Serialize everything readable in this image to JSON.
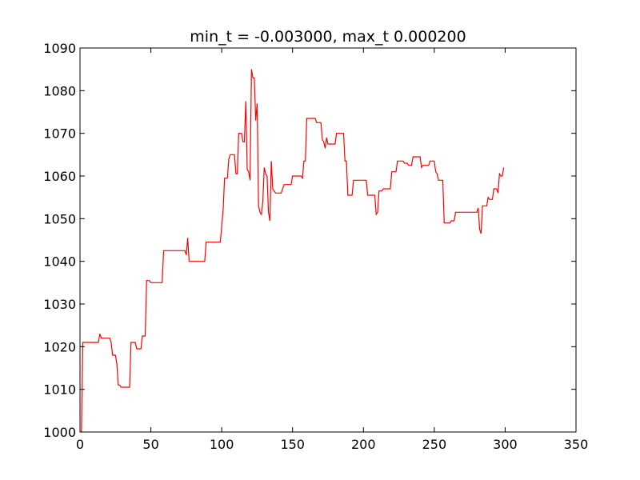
{
  "chart_data": {
    "type": "line",
    "title": "min_t = -0.003000, max_t 0.000200",
    "xlabel": "",
    "ylabel": "",
    "xlim": [
      0,
      350
    ],
    "ylim": [
      1000,
      1090
    ],
    "x_ticks": [
      0,
      50,
      100,
      150,
      200,
      250,
      300,
      350
    ],
    "y_ticks": [
      1000,
      1010,
      1020,
      1030,
      1040,
      1050,
      1060,
      1070,
      1080,
      1090
    ],
    "grid": false,
    "legend": "none",
    "series": [
      {
        "color": "#ff0000",
        "points": [
          [
            0,
            1000
          ],
          [
            1,
            1000
          ],
          [
            2,
            1021
          ],
          [
            13,
            1021
          ],
          [
            14,
            1023
          ],
          [
            15,
            1022
          ],
          [
            21,
            1022
          ],
          [
            22,
            1021
          ],
          [
            23,
            1018
          ],
          [
            25,
            1018
          ],
          [
            26,
            1016
          ],
          [
            27,
            1011
          ],
          [
            28,
            1011
          ],
          [
            29,
            1010.5
          ],
          [
            35,
            1010.5
          ],
          [
            36,
            1021
          ],
          [
            39,
            1021
          ],
          [
            40,
            1019.5
          ],
          [
            43,
            1019.5
          ],
          [
            44,
            1022.5
          ],
          [
            46,
            1022.5
          ],
          [
            47,
            1035.5
          ],
          [
            49,
            1035.5
          ],
          [
            50,
            1035
          ],
          [
            58,
            1035
          ],
          [
            59,
            1042.5
          ],
          [
            74,
            1042.5
          ],
          [
            75,
            1041.5
          ],
          [
            76,
            1045.5
          ],
          [
            77,
            1040
          ],
          [
            88,
            1040
          ],
          [
            89,
            1044.5
          ],
          [
            99,
            1044.5
          ],
          [
            101,
            1052
          ],
          [
            102,
            1059.5
          ],
          [
            104,
            1059.5
          ],
          [
            105,
            1064
          ],
          [
            106,
            1065
          ],
          [
            109,
            1065
          ],
          [
            110,
            1060.5
          ],
          [
            111,
            1060.5
          ],
          [
            112,
            1070
          ],
          [
            114,
            1070
          ],
          [
            115,
            1068
          ],
          [
            116,
            1068
          ],
          [
            117,
            1077.5
          ],
          [
            118,
            1061.5
          ],
          [
            119,
            1061
          ],
          [
            120,
            1059
          ],
          [
            121,
            1085
          ],
          [
            122,
            1083
          ],
          [
            123,
            1083
          ],
          [
            124,
            1073
          ],
          [
            125,
            1077
          ],
          [
            126,
            1053
          ],
          [
            127,
            1051.5
          ],
          [
            128,
            1051
          ],
          [
            129,
            1054
          ],
          [
            130,
            1062
          ],
          [
            131,
            1060.5
          ],
          [
            132,
            1060
          ],
          [
            133,
            1051.5
          ],
          [
            134,
            1049.5
          ],
          [
            135,
            1063.5
          ],
          [
            136,
            1057
          ],
          [
            137,
            1056.5
          ],
          [
            138,
            1056
          ],
          [
            142,
            1056
          ],
          [
            144,
            1058
          ],
          [
            149,
            1058
          ],
          [
            150,
            1060
          ],
          [
            156,
            1060
          ],
          [
            157,
            1059.5
          ],
          [
            158,
            1063.5
          ],
          [
            159,
            1063.5
          ],
          [
            160,
            1073.5
          ],
          [
            166,
            1073.5
          ],
          [
            167,
            1072.5
          ],
          [
            170,
            1072.5
          ],
          [
            171,
            1068.5
          ],
          [
            172,
            1068
          ],
          [
            173,
            1066.5
          ],
          [
            174,
            1069
          ],
          [
            175,
            1067.5
          ],
          [
            180,
            1067.5
          ],
          [
            181,
            1070
          ],
          [
            186,
            1070
          ],
          [
            187,
            1063.5
          ],
          [
            188,
            1063.5
          ],
          [
            189,
            1055.5
          ],
          [
            192,
            1055.5
          ],
          [
            193,
            1059
          ],
          [
            202,
            1059
          ],
          [
            203,
            1055.5
          ],
          [
            208,
            1055.5
          ],
          [
            209,
            1051
          ],
          [
            210,
            1051.5
          ],
          [
            211,
            1056.5
          ],
          [
            213,
            1056.5
          ],
          [
            214,
            1057
          ],
          [
            219,
            1057
          ],
          [
            220,
            1061
          ],
          [
            223,
            1061
          ],
          [
            224,
            1063.5
          ],
          [
            228,
            1063.5
          ],
          [
            229,
            1063
          ],
          [
            231,
            1063
          ],
          [
            232,
            1062.5
          ],
          [
            234,
            1062.5
          ],
          [
            235,
            1064.5
          ],
          [
            240,
            1064.5
          ],
          [
            241,
            1062
          ],
          [
            242,
            1062.5
          ],
          [
            246,
            1062.5
          ],
          [
            247,
            1063.5
          ],
          [
            250,
            1063.5
          ],
          [
            251,
            1061
          ],
          [
            252,
            1060.5
          ],
          [
            253,
            1059
          ],
          [
            256,
            1059
          ],
          [
            257,
            1049
          ],
          [
            261,
            1049
          ],
          [
            262,
            1049.5
          ],
          [
            264,
            1049.5
          ],
          [
            265,
            1051.5
          ],
          [
            280,
            1051.5
          ],
          [
            281,
            1052.5
          ],
          [
            282,
            1047.5
          ],
          [
            283,
            1046.5
          ],
          [
            284,
            1053
          ],
          [
            287,
            1053
          ],
          [
            288,
            1055
          ],
          [
            289,
            1054.5
          ],
          [
            291,
            1054.5
          ],
          [
            292,
            1057
          ],
          [
            294,
            1057
          ],
          [
            295,
            1056
          ],
          [
            296,
            1060.5
          ],
          [
            297,
            1060
          ],
          [
            298,
            1060
          ],
          [
            299,
            1062
          ]
        ]
      }
    ]
  }
}
